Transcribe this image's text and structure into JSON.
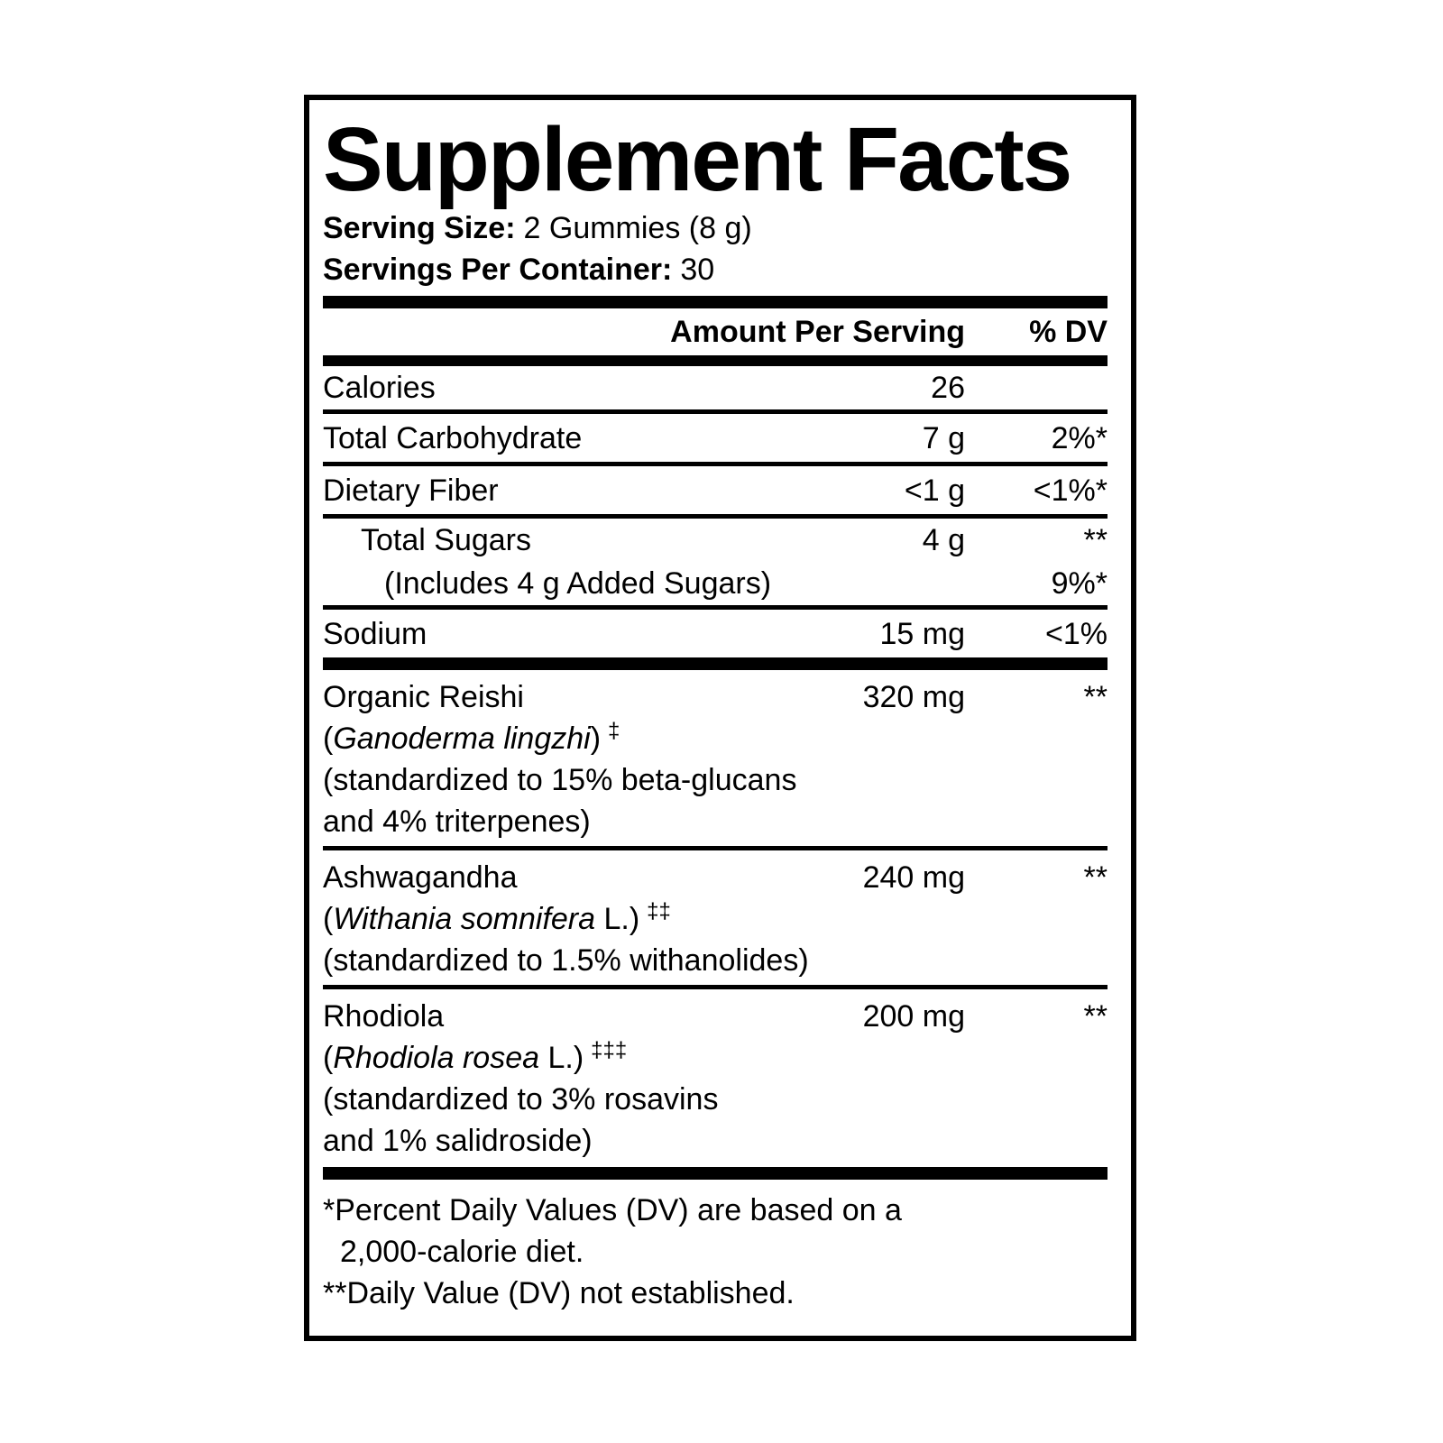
{
  "title": "Supplement Facts",
  "serving": {
    "size_label": "Serving Size:",
    "size_value": "2 Gummies (8 g)",
    "per_container_label": "Servings Per Container:",
    "per_container_value": "30"
  },
  "header": {
    "amount": "Amount Per Serving",
    "dv": "% DV"
  },
  "rows": [
    {
      "name": "Calories",
      "amount": "26",
      "dv": ""
    },
    {
      "name": "Total Carbohydrate",
      "amount": "7 g",
      "dv": "2%*"
    },
    {
      "name": "Dietary Fiber",
      "amount": "<1 g",
      "dv": "<1%*"
    },
    {
      "name": "Total Sugars",
      "amount": "4 g",
      "dv": "**"
    },
    {
      "name": "(Includes 4 g Added Sugars)",
      "amount": "",
      "dv": "9%*"
    },
    {
      "name": "Sodium",
      "amount": "15 mg",
      "dv": "<1%"
    }
  ],
  "ingredients": [
    {
      "name": "Organic Reishi",
      "amount": "320 mg",
      "dv": "**",
      "botanical_prefix": "(",
      "botanical_name": "Ganoderma lingzhi",
      "botanical_suffix": ")",
      "dagger": "‡",
      "lines": {
        "0": "(standardized to 15% beta-glucans",
        "1": "and 4% triterpenes)"
      }
    },
    {
      "name": "Ashwagandha",
      "amount": "240 mg",
      "dv": "**",
      "botanical_prefix": "(",
      "botanical_name": "Withania somnifera",
      "botanical_suffix": " L.)",
      "dagger": "‡‡",
      "lines": {
        "0": "(standardized to 1.5% withanolides)"
      }
    },
    {
      "name": "Rhodiola",
      "amount": "200 mg",
      "dv": "**",
      "botanical_prefix": "(",
      "botanical_name": "Rhodiola rosea",
      "botanical_suffix": " L.)",
      "dagger": "‡‡‡",
      "lines": {
        "0": "(standardized to 3% rosavins",
        "1": "and 1% salidroside)"
      }
    }
  ],
  "footnotes": {
    "line1": "*Percent Daily Values (DV) are based on a",
    "line2": "2,000-calorie diet.",
    "line3": "**Daily Value (DV) not established."
  },
  "colors": {
    "foreground": "#000000",
    "background": "#ffffff"
  }
}
